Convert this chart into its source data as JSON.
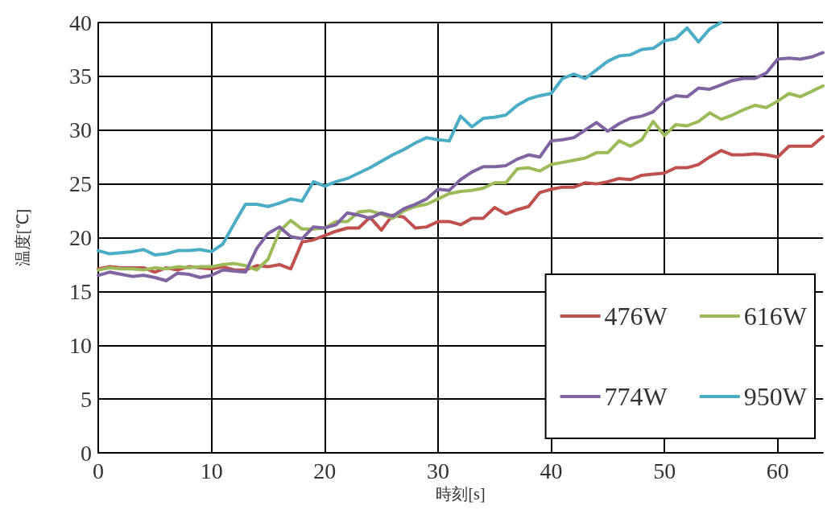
{
  "chart_data": {
    "type": "line",
    "xlabel": "時刻[s]",
    "ylabel": "温度[℃]",
    "x": [
      0,
      1,
      2,
      3,
      4,
      5,
      6,
      7,
      8,
      9,
      10,
      11,
      12,
      13,
      14,
      15,
      16,
      17,
      18,
      19,
      20,
      21,
      22,
      23,
      24,
      25,
      26,
      27,
      28,
      29,
      30,
      31,
      32,
      33,
      34,
      35,
      36,
      37,
      38,
      39,
      40,
      41,
      42,
      43,
      44,
      45,
      46,
      47,
      48,
      49,
      50,
      51,
      52,
      53,
      54,
      55,
      56,
      57,
      58,
      59,
      60,
      61,
      62,
      63,
      64
    ],
    "xlim": [
      0,
      64
    ],
    "xticks": [
      0,
      10,
      20,
      30,
      40,
      50,
      60
    ],
    "ylim": [
      0,
      40
    ],
    "yticks": [
      0,
      5,
      10,
      15,
      20,
      25,
      30,
      35,
      40
    ],
    "grid": true,
    "legend": "bottom right",
    "marker": "none",
    "line_style": "solid",
    "series": [
      {
        "name": "476W",
        "color": "#c0504d",
        "values": [
          17.1,
          17.3,
          17.2,
          17.2,
          17.2,
          16.8,
          17.2,
          17.0,
          17.3,
          17.2,
          17.1,
          17.3,
          17.0,
          17.0,
          17.4,
          17.3,
          17.5,
          17.1,
          19.6,
          19.8,
          20.2,
          20.6,
          20.9,
          20.9,
          21.9,
          20.7,
          22.1,
          21.9,
          20.9,
          21.0,
          21.5,
          21.5,
          21.2,
          21.8,
          21.8,
          22.8,
          22.2,
          22.6,
          22.9,
          24.2,
          24.5,
          24.7,
          24.7,
          25.1,
          25.0,
          25.2,
          25.5,
          25.4,
          25.8,
          25.9,
          26.0,
          26.5,
          26.5,
          26.8,
          27.5,
          28.1,
          27.7,
          27.7,
          27.8,
          27.7,
          27.5,
          28.5,
          28.5,
          28.5,
          29.4
        ]
      },
      {
        "name": "616W",
        "color": "#9bbb59",
        "values": [
          17.0,
          17.2,
          17.1,
          17.1,
          17.0,
          17.2,
          17.1,
          17.3,
          17.2,
          17.3,
          17.3,
          17.5,
          17.6,
          17.4,
          17.0,
          18.0,
          20.6,
          21.6,
          20.8,
          20.8,
          20.9,
          21.5,
          21.5,
          22.4,
          22.5,
          22.2,
          21.8,
          22.5,
          22.9,
          23.1,
          23.6,
          24.1,
          24.3,
          24.4,
          24.6,
          25.1,
          25.1,
          26.4,
          26.5,
          26.2,
          26.8,
          27.0,
          27.2,
          27.4,
          27.9,
          27.9,
          29.0,
          28.5,
          29.1,
          30.8,
          29.5,
          30.5,
          30.4,
          30.8,
          31.6,
          31.0,
          31.4,
          31.9,
          32.3,
          32.1,
          32.7,
          33.4,
          33.1,
          33.6,
          34.1
        ]
      },
      {
        "name": "774W",
        "color": "#8064a2",
        "values": [
          16.5,
          16.8,
          16.6,
          16.4,
          16.5,
          16.3,
          16.0,
          16.7,
          16.6,
          16.3,
          16.5,
          17.0,
          16.9,
          16.8,
          19.0,
          20.4,
          21.0,
          20.1,
          19.9,
          21.0,
          20.9,
          21.2,
          22.3,
          22.1,
          21.8,
          22.3,
          22.0,
          22.7,
          23.1,
          23.6,
          24.5,
          24.4,
          25.4,
          26.1,
          26.6,
          26.6,
          26.7,
          27.3,
          27.7,
          27.5,
          29.0,
          29.1,
          29.3,
          30.0,
          30.7,
          29.9,
          30.6,
          31.1,
          31.3,
          31.7,
          32.7,
          33.2,
          33.1,
          33.9,
          33.8,
          34.2,
          34.6,
          34.8,
          34.8,
          35.3,
          36.6,
          36.7,
          36.6,
          36.8,
          37.2
        ]
      },
      {
        "name": "950W",
        "color": "#4bacc6",
        "values": [
          18.8,
          18.5,
          18.6,
          18.7,
          18.9,
          18.4,
          18.5,
          18.8,
          18.8,
          18.9,
          18.7,
          19.4,
          21.3,
          23.1,
          23.1,
          22.9,
          23.2,
          23.6,
          23.4,
          25.2,
          24.8,
          25.2,
          25.5,
          26.0,
          26.5,
          27.1,
          27.7,
          28.2,
          28.8,
          29.3,
          29.1,
          29.0,
          31.3,
          30.3,
          31.1,
          31.2,
          31.4,
          32.3,
          32.9,
          33.2,
          33.4,
          34.8,
          35.2,
          34.8,
          35.6,
          36.4,
          36.9,
          37.0,
          37.5,
          37.6,
          38.3,
          38.5,
          39.5,
          38.2,
          39.4,
          40.0,
          null,
          null,
          null,
          null,
          null,
          null,
          null,
          null,
          null
        ]
      }
    ]
  }
}
